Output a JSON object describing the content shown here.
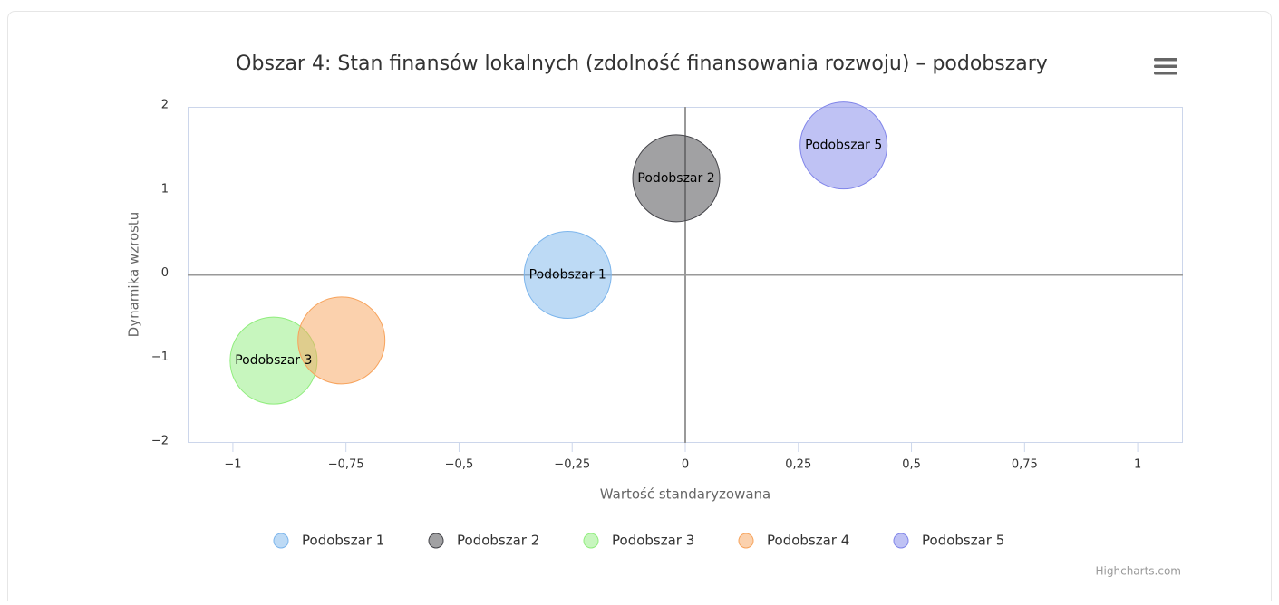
{
  "chart_data": {
    "type": "bubble",
    "title": "Obszar 4: Stan finansów lokalnych (zdolność finansowania rozwoju) – podobszary",
    "x_label": "Wartość standaryzowana",
    "y_label": "Dynamika wzrostu",
    "credits": "Highcharts.com",
    "xlim": [
      -1.1,
      1.1
    ],
    "ylim": [
      -2,
      2
    ],
    "xticks": [
      {
        "value": -1,
        "label": "−1"
      },
      {
        "value": -0.75,
        "label": "−0,75"
      },
      {
        "value": -0.5,
        "label": "−0,5"
      },
      {
        "value": -0.25,
        "label": "−0,25"
      },
      0,
      {
        "value": 0.25,
        "label": "0,25"
      },
      {
        "value": 0.5,
        "label": "0,5"
      },
      {
        "value": 0.75,
        "label": "0,75"
      },
      1
    ],
    "yticks": [
      {
        "value": -2,
        "label": "−2"
      },
      {
        "value": -1,
        "label": "−1"
      },
      0,
      1,
      2
    ],
    "x_plot_lines": [
      0
    ],
    "y_plot_lines": [
      0
    ],
    "grid": false,
    "legend": "bottom",
    "series": [
      {
        "name": "Podobszar 1",
        "color": "#7cb5ec",
        "x": [
          -0.26
        ],
        "values": [
          0
        ],
        "show_label": true
      },
      {
        "name": "Podobszar 2",
        "color": "#434348",
        "x": [
          -0.02
        ],
        "values": [
          1.15
        ],
        "show_label": true
      },
      {
        "name": "Podobszar 3",
        "color": "#90ed7d",
        "x": [
          -0.91
        ],
        "values": [
          -1.02
        ],
        "show_label": true
      },
      {
        "name": "Podobszar 4",
        "color": "#f7a35c",
        "x": [
          -0.76
        ],
        "values": [
          -0.78
        ],
        "show_label": false
      },
      {
        "name": "Podobszar 5",
        "color": "#8085e9",
        "x": [
          0.35
        ],
        "values": [
          1.54
        ],
        "show_label": true
      }
    ]
  }
}
